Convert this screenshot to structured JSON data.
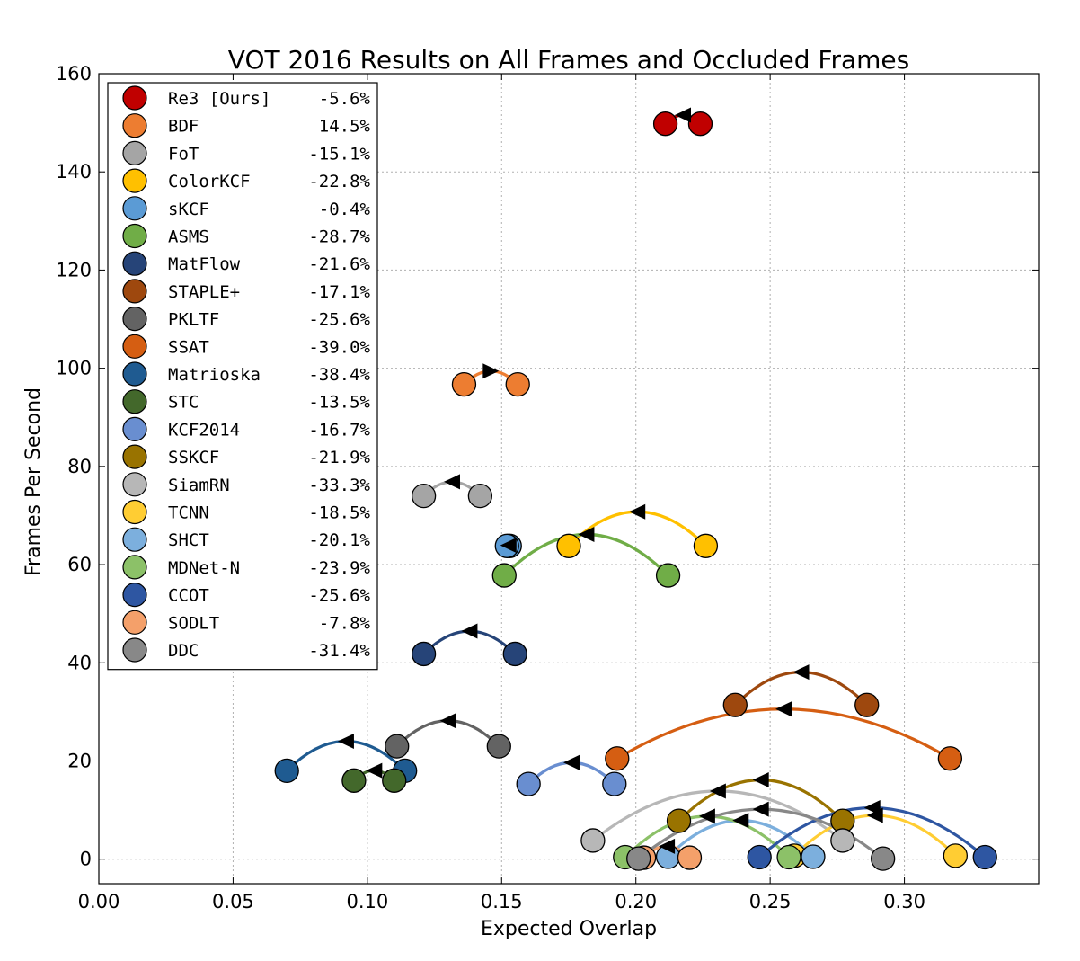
{
  "chart_data": {
    "type": "scatter",
    "title": "VOT 2016 Results on All Frames and Occluded Frames",
    "xlabel": "Expected Overlap",
    "ylabel": "Frames Per Second",
    "xlim": [
      0.0,
      0.35
    ],
    "ylim": [
      -5,
      160
    ],
    "xticks": [
      "0.00",
      "0.05",
      "0.10",
      "0.15",
      "0.20",
      "0.25",
      "0.30"
    ],
    "yticks": [
      "0",
      "20",
      "40",
      "60",
      "80",
      "100",
      "120",
      "140",
      "160"
    ],
    "grid": true,
    "legend_position": "top-left",
    "series": [
      {
        "name": "Re3 [Ours]",
        "change": "-5.6%",
        "color": "#c00000",
        "all_frames": [
          0.224,
          149.8
        ],
        "occluded": [
          0.211,
          149.8
        ]
      },
      {
        "name": "BDF",
        "change": "14.5%",
        "color": "#ed7d31",
        "all_frames": [
          0.136,
          96.7
        ],
        "occluded": [
          0.156,
          96.7
        ]
      },
      {
        "name": "FoT",
        "change": "-15.1%",
        "color": "#a5a5a5",
        "all_frames": [
          0.142,
          74.0
        ],
        "occluded": [
          0.121,
          74.0
        ]
      },
      {
        "name": "ColorKCF",
        "change": "-22.8%",
        "color": "#ffc000",
        "all_frames": [
          0.226,
          63.8
        ],
        "occluded": [
          0.175,
          63.8
        ]
      },
      {
        "name": "sKCF",
        "change": "-0.4%",
        "color": "#5b9bd5",
        "all_frames": [
          0.153,
          63.8
        ],
        "occluded": [
          0.152,
          63.8
        ]
      },
      {
        "name": "ASMS",
        "change": "-28.7%",
        "color": "#70ad47",
        "all_frames": [
          0.212,
          57.8
        ],
        "occluded": [
          0.151,
          57.8
        ]
      },
      {
        "name": "MatFlow",
        "change": "-21.6%",
        "color": "#264478",
        "all_frames": [
          0.155,
          41.8
        ],
        "occluded": [
          0.121,
          41.8
        ]
      },
      {
        "name": "STAPLE+",
        "change": "-17.1%",
        "color": "#9e480e",
        "all_frames": [
          0.286,
          31.4
        ],
        "occluded": [
          0.237,
          31.4
        ]
      },
      {
        "name": "PKLTF",
        "change": "-25.6%",
        "color": "#636363",
        "all_frames": [
          0.149,
          23.0
        ],
        "occluded": [
          0.111,
          23.0
        ]
      },
      {
        "name": "SSAT",
        "change": "-39.0%",
        "color": "#d55e12",
        "all_frames": [
          0.317,
          20.5
        ],
        "occluded": [
          0.193,
          20.5
        ]
      },
      {
        "name": "Matrioska",
        "change": "-38.4%",
        "color": "#1f5b91",
        "all_frames": [
          0.114,
          18.0
        ],
        "occluded": [
          0.07,
          18.0
        ]
      },
      {
        "name": "STC",
        "change": "-13.5%",
        "color": "#43682b",
        "all_frames": [
          0.11,
          16.0
        ],
        "occluded": [
          0.095,
          16.0
        ]
      },
      {
        "name": "KCF2014",
        "change": "-16.7%",
        "color": "#698ed0",
        "all_frames": [
          0.192,
          15.3
        ],
        "occluded": [
          0.16,
          15.3
        ]
      },
      {
        "name": "SSKCF",
        "change": "-21.9%",
        "color": "#997300",
        "all_frames": [
          0.277,
          7.8
        ],
        "occluded": [
          0.216,
          7.8
        ]
      },
      {
        "name": "SiamRN",
        "change": "-33.3%",
        "color": "#b7b7b7",
        "all_frames": [
          0.277,
          3.8
        ],
        "occluded": [
          0.184,
          3.8
        ]
      },
      {
        "name": "TCNN",
        "change": "-18.5%",
        "color": "#ffcd33",
        "all_frames": [
          0.319,
          0.7
        ],
        "occluded": [
          0.259,
          0.7
        ]
      },
      {
        "name": "SHCT",
        "change": "-20.1%",
        "color": "#7cafdd",
        "all_frames": [
          0.266,
          0.5
        ],
        "occluded": [
          0.212,
          0.5
        ]
      },
      {
        "name": "MDNet-N",
        "change": "-23.9%",
        "color": "#8cc168",
        "all_frames": [
          0.257,
          0.4
        ],
        "occluded": [
          0.196,
          0.4
        ]
      },
      {
        "name": "CCOT",
        "change": "-25.6%",
        "color": "#2e56a2",
        "all_frames": [
          0.33,
          0.4
        ],
        "occluded": [
          0.246,
          0.4
        ]
      },
      {
        "name": "SODLT",
        "change": "-7.8%",
        "color": "#f4a06a",
        "all_frames": [
          0.22,
          0.3
        ],
        "occluded": [
          0.203,
          0.3
        ]
      },
      {
        "name": "DDC",
        "change": "-31.4%",
        "color": "#888888",
        "all_frames": [
          0.292,
          0.1
        ],
        "occluded": [
          0.201,
          0.1
        ]
      }
    ]
  }
}
